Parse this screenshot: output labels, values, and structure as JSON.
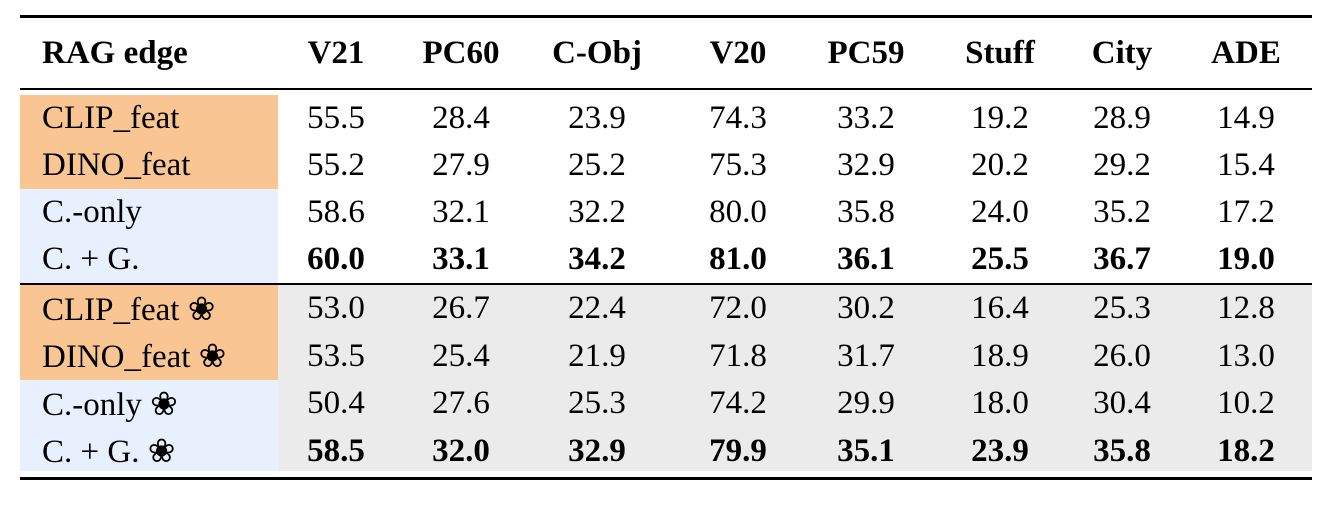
{
  "table": {
    "header": [
      "RAG edge",
      "V21",
      "PC60",
      "C-Obj",
      "V20",
      "PC59",
      "Stuff",
      "City",
      "ADE"
    ],
    "groups": [
      {
        "shaded": false,
        "rows": [
          {
            "label": "CLIP_feat",
            "label_color": "#f9c693",
            "bold": false,
            "values": [
              "55.5",
              "28.4",
              "23.9",
              "74.3",
              "33.2",
              "19.2",
              "28.9",
              "14.9"
            ]
          },
          {
            "label": "DINO_feat",
            "label_color": "#f9c693",
            "bold": false,
            "values": [
              "55.2",
              "27.9",
              "25.2",
              "75.3",
              "32.9",
              "20.2",
              "29.2",
              "15.4"
            ]
          },
          {
            "label": "C.-only",
            "label_color": "#e8f0fd",
            "bold": false,
            "values": [
              "58.6",
              "32.1",
              "32.2",
              "80.0",
              "35.8",
              "24.0",
              "35.2",
              "17.2"
            ]
          },
          {
            "label": "C. + G.",
            "label_color": "#e8f0fd",
            "bold": true,
            "values": [
              "60.0",
              "33.1",
              "34.2",
              "81.0",
              "36.1",
              "25.5",
              "36.7",
              "19.0"
            ]
          }
        ]
      },
      {
        "shaded": true,
        "rows": [
          {
            "label": "CLIP_feat ❀",
            "label_color": "#f9c693",
            "bold": false,
            "values": [
              "53.0",
              "26.7",
              "22.4",
              "72.0",
              "30.2",
              "16.4",
              "25.3",
              "12.8"
            ]
          },
          {
            "label": "DINO_feat ❀",
            "label_color": "#f9c693",
            "bold": false,
            "values": [
              "53.5",
              "25.4",
              "21.9",
              "71.8",
              "31.7",
              "18.9",
              "26.0",
              "13.0"
            ]
          },
          {
            "label": "C.-only ❀",
            "label_color": "#e8f0fd",
            "bold": false,
            "values": [
              "50.4",
              "27.6",
              "25.3",
              "74.2",
              "29.9",
              "18.0",
              "30.4",
              "10.2"
            ]
          },
          {
            "label": "C. + G. ❀",
            "label_color": "#e8f0fd",
            "bold": true,
            "values": [
              "58.5",
              "32.0",
              "32.9",
              "79.9",
              "35.1",
              "23.9",
              "35.8",
              "18.2"
            ]
          }
        ]
      }
    ]
  }
}
